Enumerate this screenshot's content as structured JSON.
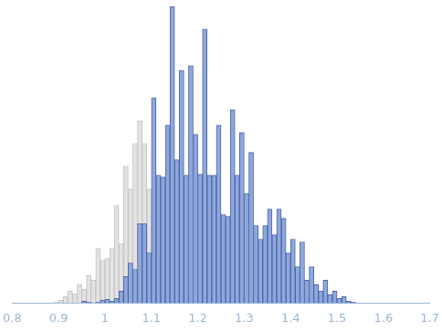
{
  "chart_data": {
    "type": "histogram",
    "bins": [
      0.88,
      0.89,
      0.9,
      0.91,
      0.92,
      0.93,
      0.94,
      0.95,
      0.96,
      0.97,
      0.98,
      0.99,
      1.0,
      1.01,
      1.02,
      1.03,
      1.04,
      1.05,
      1.06,
      1.07,
      1.08,
      1.09,
      1.1,
      1.11,
      1.12,
      1.13,
      1.14,
      1.15,
      1.16,
      1.17,
      1.18,
      1.19,
      1.2,
      1.21,
      1.22,
      1.23,
      1.24,
      1.25,
      1.26,
      1.27,
      1.28,
      1.29,
      1.3,
      1.31,
      1.32,
      1.33,
      1.34,
      1.35,
      1.36,
      1.37,
      1.38,
      1.39,
      1.4,
      1.41,
      1.42,
      1.43,
      1.44,
      1.45,
      1.46,
      1.47,
      1.48,
      1.49,
      1.5,
      1.51,
      1.52,
      1.53,
      1.54
    ],
    "series": [
      {
        "color": "#e3e3e3",
        "values": [
          0,
          1,
          3,
          7,
          13,
          10,
          20,
          15,
          30,
          25,
          60,
          47,
          49,
          60,
          107,
          65,
          150,
          125,
          175,
          200,
          175,
          125,
          0,
          0,
          0,
          0,
          0,
          0,
          0,
          0,
          0,
          0,
          0,
          0,
          0,
          0,
          0,
          0,
          0,
          0,
          0,
          0,
          0,
          0,
          0,
          0,
          0,
          0,
          0,
          0,
          0,
          0,
          0,
          0,
          0,
          0,
          0,
          0,
          0,
          0,
          0,
          0,
          0,
          0,
          0,
          0
        ]
      },
      {
        "color": "#8ea8dd",
        "values": [
          0,
          0,
          0,
          0,
          0,
          0,
          0,
          2,
          1,
          0,
          1,
          3,
          4,
          2,
          5,
          13,
          29,
          44,
          37,
          87,
          87,
          55,
          225,
          140,
          138,
          195,
          325,
          157,
          255,
          140,
          260,
          185,
          141,
          300,
          140,
          140,
          195,
          97,
          95,
          212,
          140,
          187,
          120,
          165,
          85,
          70,
          85,
          103,
          75,
          103,
          93,
          55,
          70,
          40,
          67,
          25,
          40,
          20,
          13,
          25,
          9,
          13,
          5,
          7,
          2,
          1
        ]
      }
    ],
    "xlim": [
      0.8,
      1.7
    ],
    "xticks": [
      0.8,
      0.9,
      1,
      1.1,
      1.2,
      1.3,
      1.4,
      1.5,
      1.6,
      1.7
    ],
    "ylim": [
      0,
      330
    ],
    "grid": false,
    "tick_labels": "x"
  }
}
